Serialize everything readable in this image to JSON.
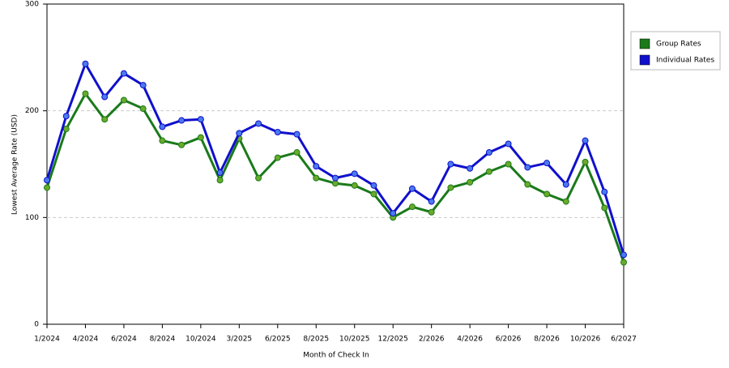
{
  "chart_data": {
    "type": "line",
    "x_label": "Month of Check In",
    "y_label": "Lowest Average Rate (USD)",
    "categories": [
      "1/2024",
      null,
      "4/2024",
      null,
      "6/2024",
      null,
      "8/2024",
      null,
      "10/2024",
      null,
      "3/2025",
      null,
      "6/2025",
      null,
      "8/2025",
      null,
      "10/2025",
      null,
      "12/2025",
      null,
      "2/2026",
      null,
      "4/2026",
      null,
      "6/2026",
      null,
      "8/2026",
      null,
      "10/2026",
      null,
      "6/2027"
    ],
    "series": [
      {
        "name": "Group Rates",
        "color": "#1a7a1a",
        "marker_color": "#6aaa2a",
        "values": [
          128,
          183,
          216,
          192,
          210,
          202,
          172,
          168,
          175,
          135,
          174,
          137,
          156,
          161,
          137,
          132,
          130,
          122,
          100,
          110,
          105,
          128,
          133,
          143,
          150,
          131,
          122,
          115,
          152,
          109,
          58
        ]
      },
      {
        "name": "Individual Rates",
        "color": "#1010cc",
        "marker_color": "#4a7aee",
        "values": [
          135,
          195,
          244,
          213,
          235,
          224,
          185,
          191,
          192,
          142,
          179,
          188,
          180,
          178,
          148,
          137,
          141,
          130,
          104,
          127,
          115,
          150,
          146,
          161,
          169,
          147,
          151,
          131,
          172,
          124,
          65
        ]
      }
    ],
    "ylim": [
      0,
      300
    ],
    "yticks": [
      0,
      100,
      200,
      300
    ],
    "grid": true,
    "legend": "right"
  }
}
